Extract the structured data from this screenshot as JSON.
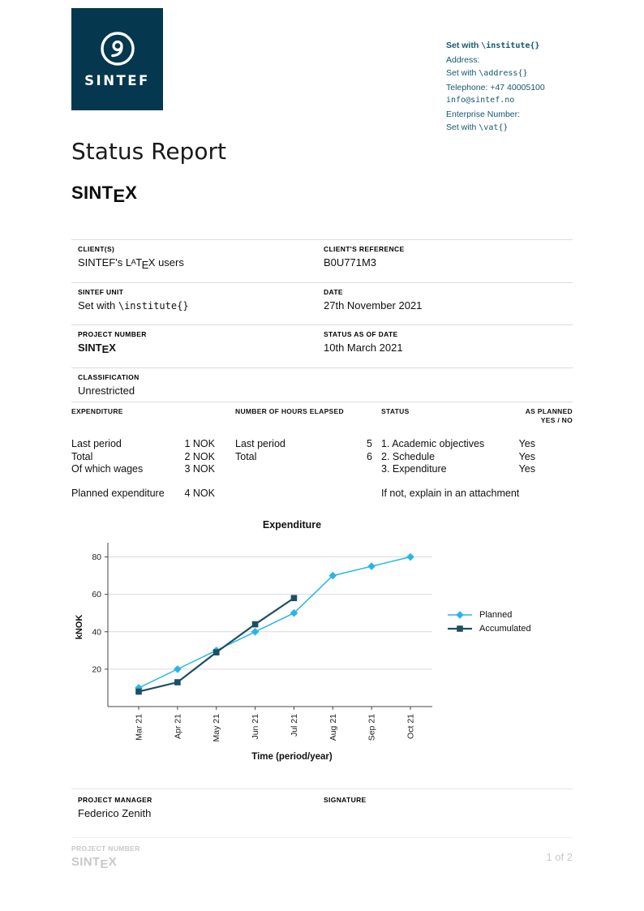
{
  "brand": {
    "logo_text": "SINTEF",
    "navy": "#05374f",
    "contact_blue": "#14586e",
    "footer_gray": "#c8c8c8"
  },
  "contact": {
    "institute_prefix": "Set with ",
    "institute_code": "\\institute{}",
    "address_label": "Address:",
    "address_prefix": "Set with ",
    "address_code": "\\address{}",
    "telephone": "Telephone: +47 40005100",
    "email": "info@sintef.no",
    "enterprise_label": "Enterprise Number:",
    "vat_prefix": "Set with ",
    "vat_code": "\\vat{}"
  },
  "header": {
    "title": "Status Report"
  },
  "wordmarks": {
    "sintex": {
      "pre": "SINT",
      "e": "E",
      "x": "X"
    },
    "latex": {
      "l": "L",
      "a": "A",
      "t": "T",
      "e": "E",
      "x": "X"
    }
  },
  "client_block": {
    "clients_label": "CLIENT(S)",
    "clients_pre": "SINTEF's ",
    "clients_post": " users",
    "client_ref_label": "CLIENT'S REFERENCE",
    "client_ref": "B0U771M3",
    "unit_label": "SINTEF UNIT",
    "unit_prefix": "Set with ",
    "unit_code": "\\institute{}",
    "date_label": "DATE",
    "date": "27th November 2021",
    "project_label": "PROJECT NUMBER",
    "status_date_label": "STATUS AS OF DATE",
    "status_date": "10th March 2021",
    "classification_label": "CLASSIFICATION",
    "classification": "Unrestricted"
  },
  "expenditure_table": {
    "headers": {
      "expenditure": "EXPENDITURE",
      "hours": "NUMBER OF HOURS ELAPSED",
      "status": "STATUS",
      "as_planned_line1": "AS PLANNED",
      "as_planned_line2": "YES / NO"
    },
    "expenditure_rows": [
      {
        "label": "Last period",
        "value": "1 NOK"
      },
      {
        "label": "Total",
        "value": "2 NOK"
      },
      {
        "label": "Of which wages",
        "value": "3 NOK"
      }
    ],
    "planned_row": {
      "label": "Planned expenditure",
      "value": "4 NOK"
    },
    "hours_rows": [
      {
        "label": "Last period",
        "value": "5"
      },
      {
        "label": "Total",
        "value": "6"
      }
    ],
    "status_rows": [
      "1. Academic objectives",
      "2. Schedule",
      "3. Expenditure"
    ],
    "status_note": "If not, explain in an attachment",
    "as_planned_values": [
      "Yes",
      "Yes",
      "Yes"
    ]
  },
  "chart_data": {
    "type": "line",
    "title": "Expenditure",
    "xlabel": "Time (period/year)",
    "ylabel": "kNOK",
    "categories": [
      "Mar 21",
      "Apr 21",
      "May 21",
      "Jun 21",
      "Jul 21",
      "Aug 21",
      "Sep 21",
      "Oct 21"
    ],
    "series": [
      {
        "name": "Planned",
        "color": "#29b5e8",
        "marker": "diamond",
        "values": [
          10,
          20,
          30,
          40,
          50,
          70,
          75,
          80
        ]
      },
      {
        "name": "Accumulated",
        "color": "#1d4e63",
        "marker": "square",
        "values": [
          8,
          13,
          29,
          44,
          58
        ]
      }
    ],
    "ylim": [
      0,
      85
    ],
    "yticks": [
      20,
      40,
      60,
      80
    ],
    "grid": "horizontal",
    "legend_position": "right"
  },
  "signoff": {
    "manager_label": "PROJECT MANAGER",
    "manager_name": "Federico Zenith",
    "signature_label": "SIGNATURE"
  },
  "footer": {
    "project_label": "PROJECT NUMBER",
    "page": "1 of 2"
  }
}
